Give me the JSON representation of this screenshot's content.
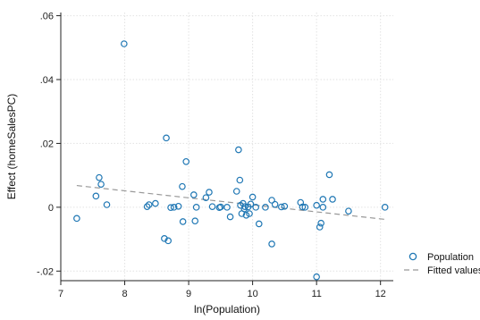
{
  "chart_data": {
    "type": "scatter",
    "xlabel": "ln(Population)",
    "ylabel": "Effect (homeSalesPC)",
    "xlim": [
      7,
      12.2
    ],
    "ylim": [
      -0.023,
      0.061
    ],
    "x_ticks": [
      7,
      8,
      9,
      10,
      11,
      12
    ],
    "x_tick_labels": [
      "7",
      "8",
      "9",
      "10",
      "11",
      "12"
    ],
    "y_ticks": [
      -0.02,
      0,
      0.02,
      0.04,
      0.06
    ],
    "y_tick_labels": [
      "-.02",
      "0",
      ".02",
      ".04",
      ".06"
    ],
    "grid": true,
    "legend_position": "bottom-right",
    "series": [
      {
        "name": "Population",
        "kind": "scatter",
        "color": "#1f77b4",
        "marker": "hollow-circle",
        "points": [
          [
            7.25,
            -0.0035
          ],
          [
            7.55,
            0.0035
          ],
          [
            7.6,
            0.0093
          ],
          [
            7.63,
            0.0072
          ],
          [
            7.72,
            0.0008
          ],
          [
            7.99,
            0.0512
          ],
          [
            8.35,
            0.0002
          ],
          [
            8.38,
            0.0008
          ],
          [
            8.48,
            0.0012
          ],
          [
            8.62,
            -0.0098
          ],
          [
            8.65,
            0.0217
          ],
          [
            8.68,
            -0.0105
          ],
          [
            8.72,
            -0.0001
          ],
          [
            8.77,
            0.0
          ],
          [
            8.84,
            0.0003
          ],
          [
            8.9,
            0.0065
          ],
          [
            8.91,
            -0.0045
          ],
          [
            8.96,
            0.0143
          ],
          [
            9.08,
            0.0039
          ],
          [
            9.1,
            -0.0043
          ],
          [
            9.12,
            0.0
          ],
          [
            9.27,
            0.003
          ],
          [
            9.32,
            0.0047
          ],
          [
            9.37,
            0.0002
          ],
          [
            9.48,
            -0.0001
          ],
          [
            9.5,
            0.0001
          ],
          [
            9.6,
            0.0
          ],
          [
            9.65,
            -0.003
          ],
          [
            9.75,
            0.005
          ],
          [
            9.78,
            0.018
          ],
          [
            9.8,
            0.0085
          ],
          [
            9.81,
            0.0006
          ],
          [
            9.83,
            -0.002
          ],
          [
            9.85,
            0.0012
          ],
          [
            9.87,
            -0.0005
          ],
          [
            9.88,
            0.0002
          ],
          [
            9.9,
            -0.0025
          ],
          [
            9.93,
            0.0001
          ],
          [
            9.95,
            -0.002
          ],
          [
            9.97,
            0.001
          ],
          [
            10.0,
            0.0032
          ],
          [
            10.05,
            0.0
          ],
          [
            10.1,
            -0.0052
          ],
          [
            10.2,
            0.0
          ],
          [
            10.3,
            0.0022
          ],
          [
            10.3,
            -0.0115
          ],
          [
            10.35,
            0.0009
          ],
          [
            10.45,
            0.0001
          ],
          [
            10.5,
            0.0003
          ],
          [
            10.75,
            0.0015
          ],
          [
            10.78,
            0.0001
          ],
          [
            10.82,
            0.0
          ],
          [
            11.0,
            -0.0218
          ],
          [
            11.0,
            0.0006
          ],
          [
            11.05,
            -0.0062
          ],
          [
            11.07,
            -0.005
          ],
          [
            11.1,
            0.0025
          ],
          [
            11.1,
            0.0
          ],
          [
            11.2,
            0.0102
          ],
          [
            11.25,
            0.0025
          ],
          [
            11.5,
            -0.0012
          ],
          [
            12.07,
            0.0
          ]
        ]
      },
      {
        "name": "Fitted values",
        "kind": "line",
        "style": "dashed",
        "color": "#999999",
        "points": [
          [
            7.25,
            0.0068
          ],
          [
            12.07,
            -0.0038
          ]
        ]
      }
    ]
  }
}
